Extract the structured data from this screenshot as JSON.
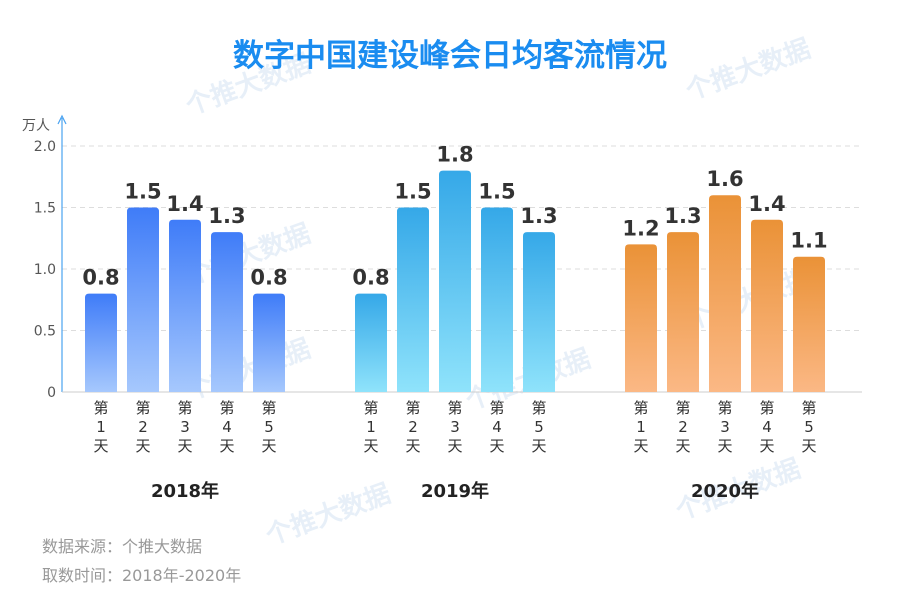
{
  "chart_data": {
    "type": "bar",
    "title": "数字中国建设峰会日均客流情况",
    "ylabel": "万人",
    "ylim": [
      0,
      2.0
    ],
    "yticks": [
      "0",
      "0.5",
      "1.0",
      "1.5",
      "2.0"
    ],
    "ytick_values": [
      0,
      0.5,
      1.0,
      1.5,
      2.0
    ],
    "grid": true,
    "categories": [
      "第1天",
      "第2天",
      "第3天",
      "第4天",
      "第5天"
    ],
    "series": [
      {
        "name": "2018年",
        "values": [
          0.8,
          1.5,
          1.4,
          1.3,
          0.8
        ],
        "value_labels": [
          "0.8",
          "1.5",
          "1.4",
          "1.3",
          "0.8"
        ],
        "colors": [
          "#3f7cf8",
          "#a6c8fd"
        ]
      },
      {
        "name": "2019年",
        "values": [
          0.8,
          1.5,
          1.8,
          1.5,
          1.3
        ],
        "value_labels": [
          "0.8",
          "1.5",
          "1.8",
          "1.5",
          "1.3"
        ],
        "colors": [
          "#35a8e8",
          "#8fe3fb"
        ]
      },
      {
        "name": "2020年",
        "values": [
          1.2,
          1.3,
          1.6,
          1.4,
          1.1
        ],
        "value_labels": [
          "1.2",
          "1.3",
          "1.6",
          "1.4",
          "1.1"
        ],
        "colors": [
          "#ea9237",
          "#fbb885"
        ]
      }
    ]
  },
  "footer": {
    "source": "数据来源：个推大数据",
    "period": "取数时间：2018年-2020年"
  },
  "watermark": "个推大数据",
  "colors": {
    "title": "#1a8cf0",
    "axis": "#4aa3f0",
    "grid": "#dddddd"
  }
}
